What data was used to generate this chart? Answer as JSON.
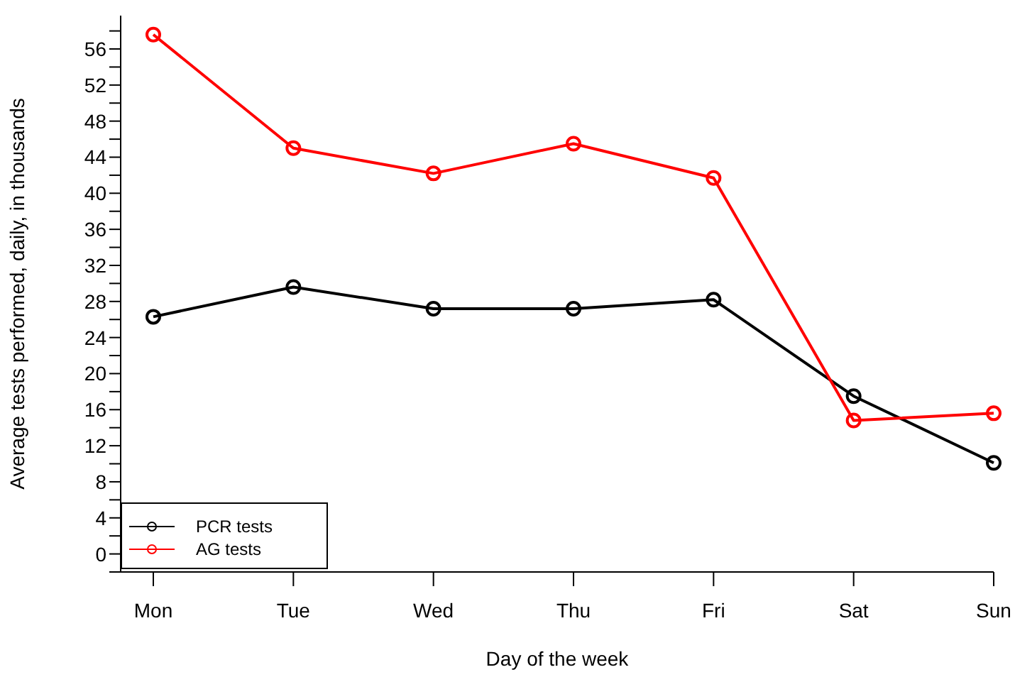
{
  "chart_data": {
    "type": "line",
    "xlabel": "Day of the week",
    "ylabel": "Average tests performed, daily, in thousands",
    "categories": [
      "Mon",
      "Tue",
      "Wed",
      "Thu",
      "Fri",
      "Sat",
      "Sun"
    ],
    "series": [
      {
        "name": "PCR tests",
        "color": "#000000",
        "values": [
          26.3,
          29.6,
          27.2,
          27.2,
          28.2,
          17.5,
          10.1
        ]
      },
      {
        "name": "AG tests",
        "color": "#ff0000",
        "values": [
          57.6,
          45.0,
          42.2,
          45.5,
          41.7,
          14.8,
          15.6
        ]
      }
    ],
    "ylim": [
      -2,
      59.7
    ],
    "yticks": [
      {
        "value": -2,
        "label": null
      },
      0,
      {
        "value": 2,
        "label": null
      },
      4,
      {
        "value": 6,
        "label": null
      },
      8,
      {
        "value": 10,
        "label": null
      },
      12,
      {
        "value": 14,
        "label": null
      },
      16,
      {
        "value": 18,
        "label": null
      },
      20,
      {
        "value": 22,
        "label": null
      },
      24,
      {
        "value": 26,
        "label": null
      },
      28,
      {
        "value": 30,
        "label": null
      },
      32,
      {
        "value": 34,
        "label": null
      },
      36,
      {
        "value": 38,
        "label": null
      },
      40,
      {
        "value": 42,
        "label": null
      },
      44,
      {
        "value": 46,
        "label": null
      },
      48,
      {
        "value": 50,
        "label": null
      },
      52,
      {
        "value": 54,
        "label": null
      },
      56,
      {
        "value": 58,
        "label": null
      }
    ],
    "grid": false,
    "legend": "bottom left",
    "marker": "circle",
    "line_style": "solid"
  }
}
